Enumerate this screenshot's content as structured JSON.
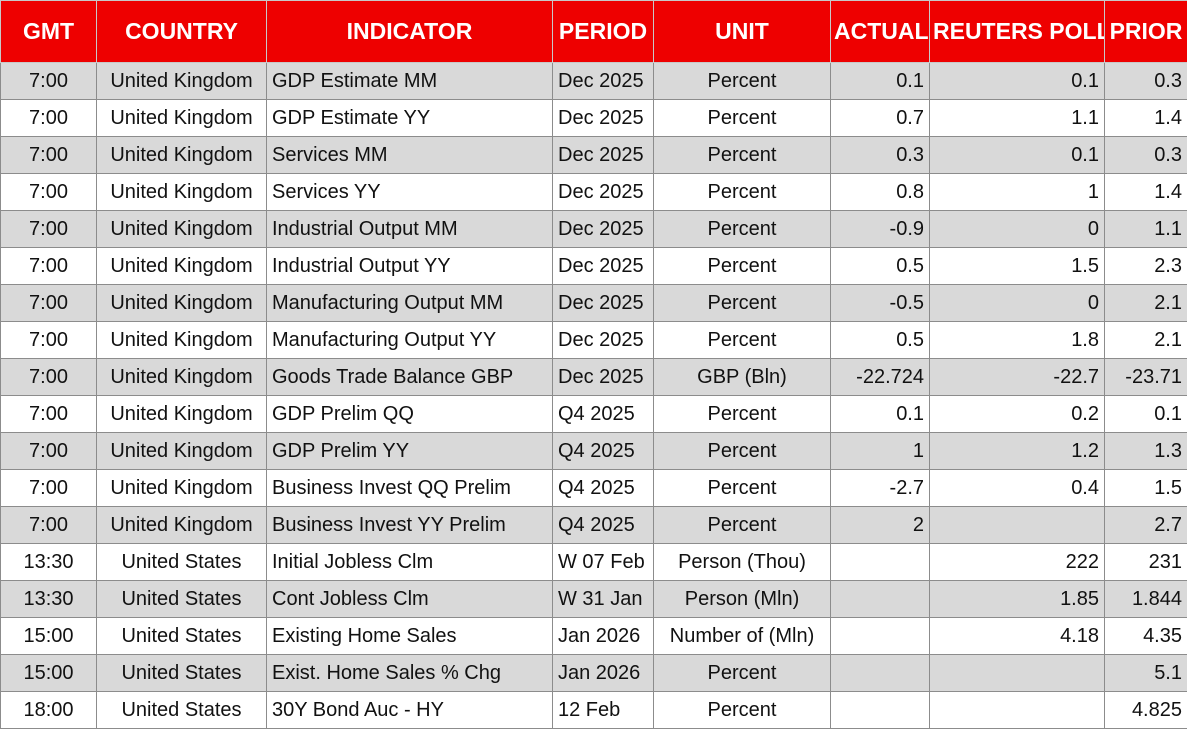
{
  "headers": {
    "gmt": "GMT",
    "country": "COUNTRY",
    "indicator": "INDICATOR",
    "period": "PERIOD",
    "unit": "UNIT",
    "actual": "ACTUAL",
    "reuters_poll": "REUTERS POLL",
    "prior": "PRIOR"
  },
  "colors": {
    "header_background": "#ee0000",
    "header_text": "#ffffff",
    "stripe_row": "#d9d9d9",
    "plain_row": "#ffffff"
  },
  "rows": [
    {
      "gmt": "7:00",
      "country": "United Kingdom",
      "indicator": "GDP Estimate MM",
      "period": "Dec 2025",
      "unit": "Percent",
      "actual": "0.1",
      "reuters_poll": "0.1",
      "prior": "0.3"
    },
    {
      "gmt": "7:00",
      "country": "United Kingdom",
      "indicator": "GDP Estimate YY",
      "period": "Dec 2025",
      "unit": "Percent",
      "actual": "0.7",
      "reuters_poll": "1.1",
      "prior": "1.4"
    },
    {
      "gmt": "7:00",
      "country": "United Kingdom",
      "indicator": "Services MM",
      "period": "Dec 2025",
      "unit": "Percent",
      "actual": "0.3",
      "reuters_poll": "0.1",
      "prior": "0.3"
    },
    {
      "gmt": "7:00",
      "country": "United Kingdom",
      "indicator": "Services YY",
      "period": "Dec 2025",
      "unit": "Percent",
      "actual": "0.8",
      "reuters_poll": "1",
      "prior": "1.4"
    },
    {
      "gmt": "7:00",
      "country": "United Kingdom",
      "indicator": "Industrial Output MM",
      "period": "Dec 2025",
      "unit": "Percent",
      "actual": "-0.9",
      "reuters_poll": "0",
      "prior": "1.1"
    },
    {
      "gmt": "7:00",
      "country": "United Kingdom",
      "indicator": "Industrial Output YY",
      "period": "Dec 2025",
      "unit": "Percent",
      "actual": "0.5",
      "reuters_poll": "1.5",
      "prior": "2.3"
    },
    {
      "gmt": "7:00",
      "country": "United Kingdom",
      "indicator": "Manufacturing Output MM",
      "period": "Dec 2025",
      "unit": "Percent",
      "actual": "-0.5",
      "reuters_poll": "0",
      "prior": "2.1"
    },
    {
      "gmt": "7:00",
      "country": "United Kingdom",
      "indicator": "Manufacturing Output YY",
      "period": "Dec 2025",
      "unit": "Percent",
      "actual": "0.5",
      "reuters_poll": "1.8",
      "prior": "2.1"
    },
    {
      "gmt": "7:00",
      "country": "United Kingdom",
      "indicator": "Goods Trade Balance GBP",
      "period": "Dec 2025",
      "unit": "GBP (Bln)",
      "actual": "-22.724",
      "reuters_poll": "-22.7",
      "prior": "-23.71"
    },
    {
      "gmt": "7:00",
      "country": "United Kingdom",
      "indicator": "GDP Prelim QQ",
      "period": "Q4 2025",
      "unit": "Percent",
      "actual": "0.1",
      "reuters_poll": "0.2",
      "prior": "0.1"
    },
    {
      "gmt": "7:00",
      "country": "United Kingdom",
      "indicator": "GDP Prelim YY",
      "period": "Q4 2025",
      "unit": "Percent",
      "actual": "1",
      "reuters_poll": "1.2",
      "prior": "1.3"
    },
    {
      "gmt": "7:00",
      "country": "United Kingdom",
      "indicator": "Business Invest QQ Prelim",
      "period": "Q4 2025",
      "unit": "Percent",
      "actual": "-2.7",
      "reuters_poll": "0.4",
      "prior": "1.5"
    },
    {
      "gmt": "7:00",
      "country": "United Kingdom",
      "indicator": "Business Invest YY Prelim",
      "period": "Q4 2025",
      "unit": "Percent",
      "actual": "2",
      "reuters_poll": "",
      "prior": "2.7"
    },
    {
      "gmt": "13:30",
      "country": "United States",
      "indicator": "Initial Jobless Clm",
      "period": "W 07 Feb",
      "unit": "Person (Thou)",
      "actual": "",
      "reuters_poll": "222",
      "prior": "231"
    },
    {
      "gmt": "13:30",
      "country": "United States",
      "indicator": "Cont Jobless Clm",
      "period": "W 31 Jan",
      "unit": "Person (Mln)",
      "actual": "",
      "reuters_poll": "1.85",
      "prior": "1.844"
    },
    {
      "gmt": "15:00",
      "country": "United States",
      "indicator": "Existing Home Sales",
      "period": "Jan 2026",
      "unit": "Number of (Mln)",
      "actual": "",
      "reuters_poll": "4.18",
      "prior": "4.35"
    },
    {
      "gmt": "15:00",
      "country": "United States",
      "indicator": "Exist. Home Sales % Chg",
      "period": "Jan 2026",
      "unit": "Percent",
      "actual": "",
      "reuters_poll": "",
      "prior": "5.1"
    },
    {
      "gmt": "18:00",
      "country": "United States",
      "indicator": "30Y Bond Auc - HY",
      "period": "12 Feb",
      "unit": "Percent",
      "actual": "",
      "reuters_poll": "",
      "prior": "4.825"
    }
  ]
}
